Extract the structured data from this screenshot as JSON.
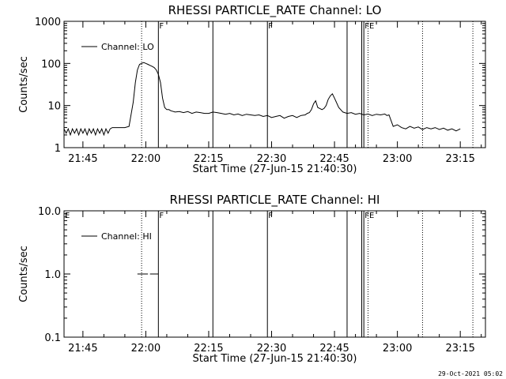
{
  "chart_data": [
    {
      "type": "line",
      "title": "RHESSI PARTICLE_RATE Channel: LO",
      "xlabel": "Start Time (27-Jun-15 21:40:30)",
      "ylabel": "Counts/sec",
      "yscale": "log",
      "ylim": [
        1,
        1000
      ],
      "xlim": [
        "21:40:30",
        "23:21:00"
      ],
      "x_ticks": [
        "21:45",
        "22:00",
        "22:15",
        "22:30",
        "22:45",
        "23:00",
        "23:15"
      ],
      "y_ticks": [
        "1",
        "10",
        "100",
        "1000"
      ],
      "legend": "top-left",
      "series": [
        {
          "name": "Channel: LO",
          "x": [
            "21:40:30",
            "21:41:00",
            "21:41:30",
            "21:42:00",
            "21:42:30",
            "21:43:00",
            "21:43:30",
            "21:44:00",
            "21:44:30",
            "21:45:00",
            "21:45:30",
            "21:46:00",
            "21:46:30",
            "21:47:00",
            "21:47:30",
            "21:48:00",
            "21:48:30",
            "21:49:00",
            "21:49:30",
            "21:50:00",
            "21:50:30",
            "21:51:00",
            "21:51:30",
            "21:52:00",
            "21:52:30",
            "21:53:00",
            "21:54:00",
            "21:55:00",
            "21:56:00",
            "21:57:00",
            "21:57:30",
            "21:58:00",
            "21:58:30",
            "21:59:00",
            "21:59:30",
            "22:00:00",
            "22:00:30",
            "22:01:00",
            "22:01:30",
            "22:02:00",
            "22:02:30",
            "22:03:00",
            "22:03:30",
            "22:04:00",
            "22:04:30",
            "22:05:00",
            "22:05:30",
            "22:06:00",
            "22:07:00",
            "22:08:00",
            "22:09:00",
            "22:10:00",
            "22:11:00",
            "22:12:00",
            "22:13:00",
            "22:14:00",
            "22:15:00",
            "22:16:00",
            "22:17:00",
            "22:18:00",
            "22:19:00",
            "22:20:00",
            "22:21:00",
            "22:22:00",
            "22:23:00",
            "22:24:00",
            "22:25:00",
            "22:26:00",
            "22:27:00",
            "22:28:00",
            "22:29:00",
            "22:30:00",
            "22:31:00",
            "22:32:00",
            "22:33:00",
            "22:34:00",
            "22:35:00",
            "22:36:00",
            "22:37:00",
            "22:38:00",
            "22:38:30",
            "22:39:00",
            "22:39:30",
            "22:40:00",
            "22:40:30",
            "22:41:00",
            "22:41:30",
            "22:42:00",
            "22:42:30",
            "22:43:00",
            "22:43:30",
            "22:44:00",
            "22:44:30",
            "22:45:00",
            "22:46:00",
            "22:47:00",
            "22:48:00",
            "22:49:00",
            "22:50:00",
            "22:51:00",
            "22:52:00",
            "22:53:00",
            "22:54:00",
            "22:55:00",
            "22:56:00",
            "22:57:00",
            "22:57:30",
            "22:58:00",
            "22:59:00",
            "23:00:00",
            "23:01:00",
            "23:02:00",
            "23:03:00",
            "23:04:00",
            "23:05:00",
            "23:06:00",
            "23:07:00",
            "23:08:00",
            "23:09:00",
            "23:10:00",
            "23:11:00",
            "23:12:00",
            "23:13:00",
            "23:14:00",
            "23:15:00"
          ],
          "y": [
            2.8,
            2.2,
            2.8,
            2.0,
            2.8,
            2.2,
            2.8,
            2.0,
            2.8,
            2.2,
            2.8,
            2.0,
            2.8,
            2.2,
            2.8,
            2.0,
            2.8,
            2.2,
            2.8,
            2.0,
            2.8,
            2.2,
            2.8,
            3.0,
            3.0,
            3.0,
            3.0,
            3.0,
            3.2,
            12,
            35,
            70,
            95,
            100,
            105,
            100,
            95,
            90,
            85,
            80,
            70,
            55,
            35,
            15,
            9,
            8,
            8,
            7.5,
            7,
            7.2,
            6.8,
            7.2,
            6.5,
            7,
            6.8,
            6.5,
            6.5,
            7,
            6.8,
            6.5,
            6.2,
            6.5,
            6,
            6.3,
            5.8,
            6.2,
            6,
            5.8,
            6,
            5.5,
            5.8,
            5.2,
            5.5,
            5.8,
            5,
            5.5,
            5.8,
            5.2,
            5.8,
            6,
            6.5,
            6.8,
            8,
            11,
            13,
            9,
            8.5,
            8,
            8.5,
            10,
            14,
            17,
            19,
            15,
            9,
            7,
            6.5,
            6.8,
            6.2,
            6.5,
            6,
            6.3,
            5.8,
            6.2,
            6,
            6.3,
            5.8,
            6.0,
            3.2,
            3.5,
            3.0,
            2.8,
            3.2,
            2.9,
            3.1,
            2.7,
            3.0,
            2.8,
            3.0,
            2.7,
            2.9,
            2.6,
            2.8,
            2.5,
            2.8
          ]
        }
      ],
      "markers": [
        {
          "time": "21:59:00",
          "style": "dotted",
          "label": ""
        },
        {
          "time": "22:03:00",
          "style": "solid",
          "label": "F"
        },
        {
          "time": "22:16:00",
          "style": "solid",
          "label": ""
        },
        {
          "time": "22:29:00",
          "style": "solid",
          "label": "F"
        },
        {
          "time": "22:48:00",
          "style": "solid",
          "label": ""
        },
        {
          "time": "22:51:30",
          "style": "solid",
          "label": ""
        },
        {
          "time": "22:52:00",
          "style": "solid",
          "label": "FE"
        },
        {
          "time": "22:53:00",
          "style": "dotted",
          "label": ""
        },
        {
          "time": "23:06:00",
          "style": "dotted",
          "label": ""
        },
        {
          "time": "23:18:00",
          "style": "dotted",
          "label": ""
        }
      ]
    },
    {
      "type": "line",
      "title": "RHESSI PARTICLE_RATE Channel: HI",
      "xlabel": "Start Time (27-Jun-15 21:40:30)",
      "ylabel": "Counts/sec",
      "yscale": "log",
      "ylim": [
        0.1,
        10
      ],
      "xlim": [
        "21:40:30",
        "23:21:00"
      ],
      "x_ticks": [
        "21:45",
        "22:00",
        "22:15",
        "22:30",
        "22:45",
        "23:00",
        "23:15"
      ],
      "y_ticks": [
        "0.1",
        "1.0",
        "10.0"
      ],
      "legend": "top-left",
      "corner_label": "E",
      "series": [
        {
          "name": "Channel: HI",
          "segments": [
            {
              "x": [
                "21:58:00",
                "22:00:30"
              ],
              "y": [
                1.0,
                1.0
              ]
            },
            {
              "x": [
                "22:01:00",
                "22:03:00"
              ],
              "y": [
                1.0,
                1.0
              ]
            }
          ]
        }
      ],
      "markers": [
        {
          "time": "21:59:00",
          "style": "dotted",
          "label": ""
        },
        {
          "time": "22:03:00",
          "style": "solid",
          "label": "F"
        },
        {
          "time": "22:16:00",
          "style": "solid",
          "label": ""
        },
        {
          "time": "22:29:00",
          "style": "solid",
          "label": "F"
        },
        {
          "time": "22:48:00",
          "style": "solid",
          "label": ""
        },
        {
          "time": "22:51:30",
          "style": "solid",
          "label": ""
        },
        {
          "time": "22:52:00",
          "style": "solid",
          "label": "FE"
        },
        {
          "time": "22:53:00",
          "style": "dotted",
          "label": ""
        },
        {
          "time": "23:06:00",
          "style": "dotted",
          "label": ""
        },
        {
          "time": "23:18:00",
          "style": "dotted",
          "label": ""
        }
      ]
    }
  ],
  "footer": {
    "timestamp": "29-Oct-2021 05:02"
  }
}
